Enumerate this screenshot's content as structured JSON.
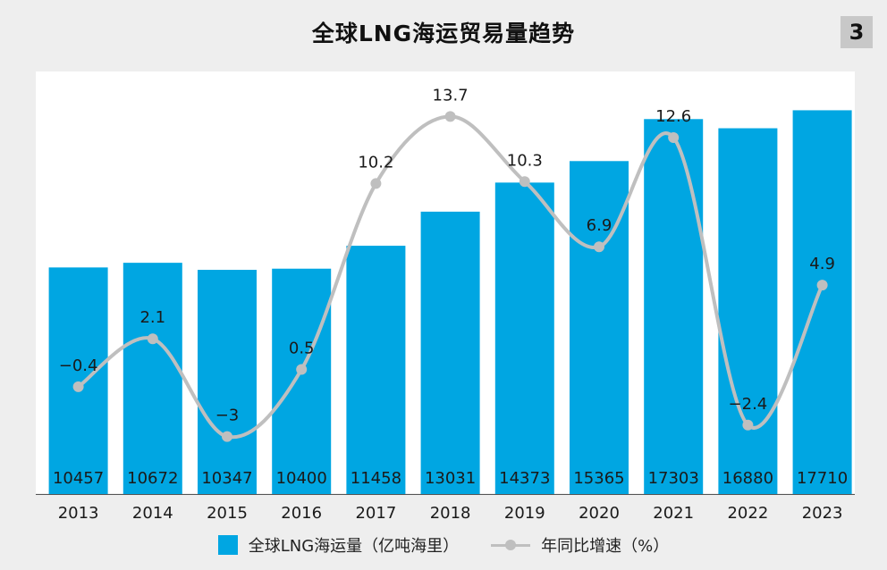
{
  "title": "全球LNG海运贸易量趋势",
  "badge": "3",
  "colors": {
    "bar": "#00a6e2",
    "line": "#bfbfbf",
    "text": "#1a1a1a"
  },
  "legend": {
    "bars_label": "全球LNG海运量（亿吨海里）",
    "line_label": "年同比增速（%）"
  },
  "chart_data": {
    "type": "bar",
    "title": "全球LNG海运贸易量趋势",
    "categories": [
      "2013",
      "2014",
      "2015",
      "2016",
      "2017",
      "2018",
      "2019",
      "2020",
      "2021",
      "2022",
      "2023"
    ],
    "series": [
      {
        "name": "全球LNG海运量（亿吨海里）",
        "type": "bar",
        "values": [
          10457,
          10672,
          10347,
          10400,
          11458,
          13031,
          14373,
          15365,
          17303,
          16880,
          17710
        ],
        "labels": [
          "10457",
          "10672",
          "10347",
          "10400",
          "11458",
          "13031",
          "14373",
          "15365",
          "17303",
          "16880",
          "17710"
        ]
      },
      {
        "name": "年同比增速（%）",
        "type": "line",
        "values": [
          -0.4,
          2.1,
          -3,
          0.5,
          10.2,
          13.7,
          10.3,
          6.9,
          12.6,
          -2.4,
          4.9
        ],
        "labels": [
          "−0.4",
          "2.1",
          "−3",
          "0.5",
          "10.2",
          "13.7",
          "10.3",
          "6.9",
          "12.6",
          "−2.4",
          "4.9"
        ]
      }
    ],
    "bar_axis_range": [
      0,
      19500
    ],
    "line_axis_range": [
      -6,
      16
    ],
    "grid": false,
    "legend_position": "bottom"
  }
}
